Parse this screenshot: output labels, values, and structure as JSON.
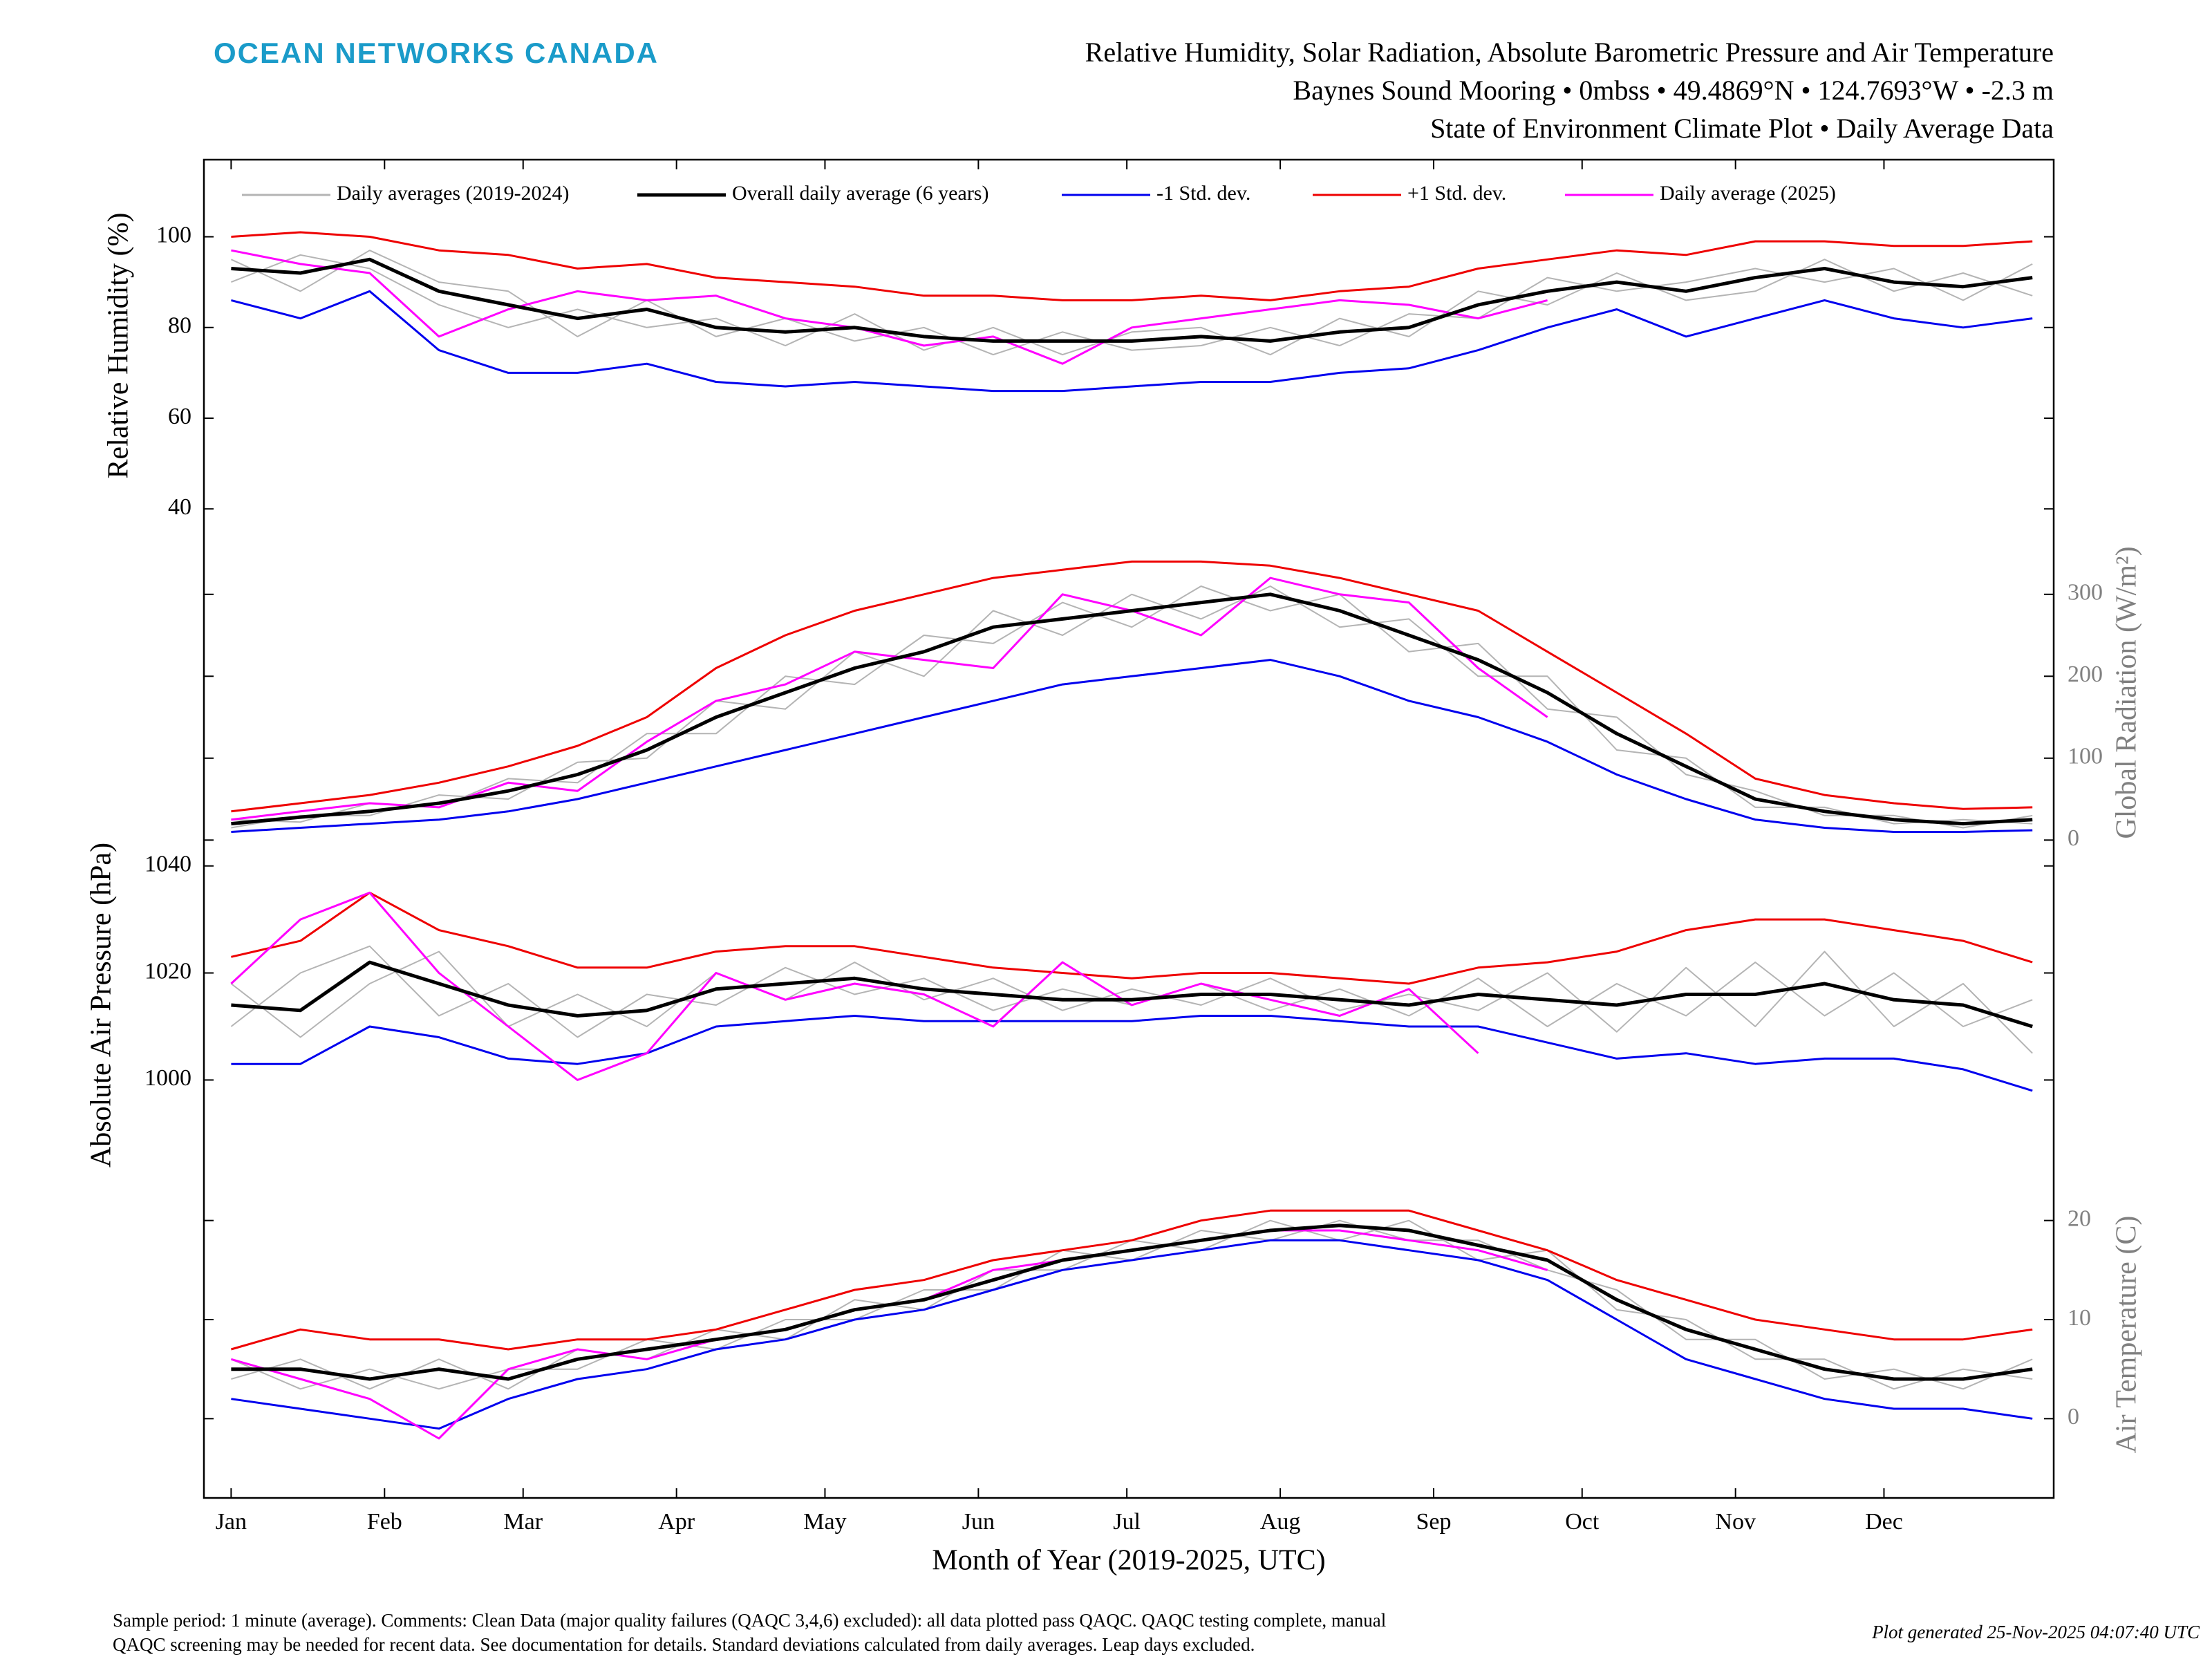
{
  "logo": "OCEAN NETWORKS CANADA",
  "chart_data": {
    "type": "line",
    "title": [
      "Relative Humidity, Solar Radiation, Absolute Barometric Pressure and Air Temperature",
      "Baynes Sound Mooring • 0mbss • 49.4869°N • 124.7693°W • -2.3 m",
      "State of Environment Climate Plot • Daily Average Data"
    ],
    "xlabel": "Month of Year (2019-2025, UTC)",
    "x": [
      1,
      15,
      29,
      43,
      57,
      71,
      85,
      99,
      113,
      127,
      141,
      155,
      169,
      183,
      197,
      211,
      225,
      239,
      253,
      267,
      281,
      295,
      309,
      323,
      337,
      351,
      365
    ],
    "xlim": [
      -4.5,
      369.3
    ],
    "xticks": [
      {
        "value": 1,
        "label": "Jan"
      },
      {
        "value": 32,
        "label": "Feb"
      },
      {
        "value": 60,
        "label": "Mar"
      },
      {
        "value": 91,
        "label": "Apr"
      },
      {
        "value": 121,
        "label": "May"
      },
      {
        "value": 152,
        "label": "Jun"
      },
      {
        "value": 182,
        "label": "Jul"
      },
      {
        "value": 213,
        "label": "Aug"
      },
      {
        "value": 244,
        "label": "Sep"
      },
      {
        "value": 274,
        "label": "Oct"
      },
      {
        "value": 305,
        "label": "Nov"
      },
      {
        "value": 335,
        "label": "Dec"
      }
    ],
    "legend": [
      {
        "name": "Daily averages (2019-2024)",
        "color": "#b4b4b4"
      },
      {
        "name": "Overall daily average (6 years)",
        "color": "#000000"
      },
      {
        "name": "-1 Std. dev.",
        "color": "#0000ee"
      },
      {
        "name": "+1 Std. dev.",
        "color": "#ee0000"
      },
      {
        "name": "Daily average (2025)",
        "color": "#ff00ff"
      }
    ],
    "panels": [
      {
        "ylabel": "Relative Humidity (%)",
        "axis_side": "left",
        "axis_color": "#000000",
        "ylim": [
          35,
          117
        ],
        "yticks": [
          40,
          60,
          80,
          100
        ],
        "series": [
          {
            "color": "#b4b4b4",
            "values": [
              90,
              96,
              93,
              85,
              80,
              84,
              80,
              82,
              76,
              83,
              75,
              80,
              74,
              79,
              80,
              74,
              82,
              78,
              88,
              85,
              92,
              86,
              88,
              95,
              88,
              92,
              87
            ]
          },
          {
            "color": "#b4b4b4",
            "values": [
              95,
              88,
              97,
              90,
              88,
              78,
              86,
              78,
              82,
              77,
              80,
              74,
              79,
              75,
              76,
              80,
              76,
              83,
              82,
              91,
              88,
              90,
              93,
              90,
              93,
              86,
              94
            ]
          },
          {
            "color": "#0000ee",
            "values": [
              86,
              82,
              88,
              75,
              70,
              70,
              72,
              68,
              67,
              68,
              67,
              66,
              66,
              67,
              68,
              68,
              70,
              71,
              75,
              80,
              84,
              78,
              82,
              86,
              82,
              80,
              82
            ]
          },
          {
            "color": "#ee0000",
            "values": [
              100,
              101,
              100,
              97,
              96,
              93,
              94,
              91,
              90,
              89,
              87,
              87,
              86,
              86,
              87,
              86,
              88,
              89,
              93,
              95,
              97,
              96,
              99,
              99,
              98,
              98,
              99
            ]
          },
          {
            "color": "#ff00ff",
            "values": [
              97,
              94,
              92,
              78,
              84,
              88,
              86,
              87,
              82,
              80,
              76,
              78,
              72,
              80,
              82,
              84,
              86,
              85,
              82,
              86,
              null,
              null,
              null,
              null,
              null,
              null,
              null
            ]
          },
          {
            "color": "#000000",
            "values": [
              93,
              92,
              95,
              88,
              85,
              82,
              84,
              80,
              79,
              80,
              78,
              77,
              77,
              77,
              78,
              77,
              79,
              80,
              85,
              88,
              90,
              88,
              91,
              93,
              90,
              89,
              91
            ]
          }
        ]
      },
      {
        "ylabel": "Global Radiation (W/m²)",
        "axis_side": "right",
        "axis_color": "#808080",
        "ylim": [
          -20,
          380
        ],
        "yticks": [
          0,
          100,
          200,
          300
        ],
        "series": [
          {
            "color": "#b4b4b4",
            "values": [
              15,
              30,
              30,
              55,
              50,
              95,
              100,
              170,
              160,
              230,
              200,
              280,
              250,
              300,
              270,
              310,
              260,
              270,
              200,
              200,
              110,
              100,
              40,
              40,
              20,
              25,
              20
            ]
          },
          {
            "color": "#b4b4b4",
            "values": [
              25,
              22,
              45,
              40,
              75,
              70,
              130,
              130,
              200,
              190,
              250,
              240,
              290,
              260,
              310,
              280,
              300,
              230,
              240,
              160,
              150,
              80,
              60,
              30,
              30,
              15,
              30
            ]
          },
          {
            "color": "#0000ee",
            "values": [
              10,
              15,
              20,
              25,
              35,
              50,
              70,
              90,
              110,
              130,
              150,
              170,
              190,
              200,
              210,
              220,
              200,
              170,
              150,
              120,
              80,
              50,
              25,
              15,
              10,
              10,
              12
            ]
          },
          {
            "color": "#ee0000",
            "values": [
              35,
              45,
              55,
              70,
              90,
              115,
              150,
              210,
              250,
              280,
              300,
              320,
              330,
              340,
              340,
              335,
              320,
              300,
              280,
              230,
              180,
              130,
              75,
              55,
              45,
              38,
              40
            ]
          },
          {
            "color": "#ff00ff",
            "values": [
              25,
              35,
              45,
              40,
              70,
              60,
              120,
              170,
              190,
              230,
              220,
              210,
              300,
              280,
              250,
              320,
              300,
              290,
              210,
              150,
              null,
              null,
              null,
              null,
              null,
              null,
              null
            ]
          },
          {
            "color": "#000000",
            "values": [
              20,
              28,
              35,
              45,
              60,
              80,
              110,
              150,
              180,
              210,
              230,
              260,
              270,
              280,
              290,
              300,
              280,
              250,
              220,
              180,
              130,
              90,
              50,
              35,
              25,
              20,
              25
            ]
          }
        ]
      },
      {
        "ylabel": "Absolute Air Pressure (hPa)",
        "axis_side": "left",
        "axis_color": "#000000",
        "ylim": [
          983,
          1045
        ],
        "yticks": [
          1000,
          1020,
          1040
        ],
        "series": [
          {
            "color": "#b4b4b4",
            "values": [
              1010,
              1020,
              1025,
              1012,
              1018,
              1008,
              1016,
              1014,
              1021,
              1016,
              1019,
              1013,
              1017,
              1014,
              1018,
              1013,
              1017,
              1012,
              1019,
              1010,
              1018,
              1012,
              1022,
              1012,
              1020,
              1010,
              1015
            ]
          },
          {
            "color": "#b4b4b4",
            "values": [
              1018,
              1008,
              1018,
              1024,
              1010,
              1016,
              1010,
              1020,
              1015,
              1022,
              1015,
              1019,
              1013,
              1017,
              1014,
              1019,
              1013,
              1016,
              1013,
              1020,
              1009,
              1021,
              1010,
              1024,
              1010,
              1018,
              1005
            ]
          },
          {
            "color": "#0000ee",
            "values": [
              1003,
              1003,
              1010,
              1008,
              1004,
              1003,
              1005,
              1010,
              1011,
              1012,
              1011,
              1011,
              1011,
              1011,
              1012,
              1012,
              1011,
              1010,
              1010,
              1007,
              1004,
              1005,
              1003,
              1004,
              1004,
              1002,
              998
            ]
          },
          {
            "color": "#ee0000",
            "values": [
              1023,
              1026,
              1035,
              1028,
              1025,
              1021,
              1021,
              1024,
              1025,
              1025,
              1023,
              1021,
              1020,
              1019,
              1020,
              1020,
              1019,
              1018,
              1021,
              1022,
              1024,
              1028,
              1030,
              1030,
              1028,
              1026,
              1022
            ]
          },
          {
            "color": "#ff00ff",
            "values": [
              1018,
              1030,
              1035,
              1020,
              1010,
              1000,
              1005,
              1020,
              1015,
              1018,
              1016,
              1010,
              1022,
              1014,
              1018,
              1015,
              1012,
              1017,
              1005,
              null,
              null,
              null,
              null,
              null,
              null,
              null,
              null
            ]
          },
          {
            "color": "#000000",
            "values": [
              1014,
              1013,
              1022,
              1018,
              1014,
              1012,
              1013,
              1017,
              1018,
              1019,
              1017,
              1016,
              1015,
              1015,
              1016,
              1016,
              1015,
              1014,
              1016,
              1015,
              1014,
              1016,
              1016,
              1018,
              1015,
              1014,
              1010
            ]
          }
        ]
      },
      {
        "ylabel": "Air Temperature (C)",
        "axis_side": "right",
        "axis_color": "#808080",
        "ylim": [
          -8,
          25
        ],
        "yticks": [
          0,
          10,
          20
        ],
        "series": [
          {
            "color": "#b4b4b4",
            "values": [
              4,
              6,
              3,
              6,
              3,
              7,
              6,
              9,
              8,
              12,
              11,
              15,
              15,
              18,
              17,
              20,
              18,
              20,
              16,
              17,
              11,
              10,
              6,
              6,
              3,
              5,
              4
            ]
          },
          {
            "color": "#b4b4b4",
            "values": [
              6,
              3,
              5,
              3,
              5,
              5,
              8,
              7,
              10,
              10,
              13,
              13,
              17,
              16,
              19,
              18,
              20,
              18,
              18,
              15,
              13,
              8,
              8,
              4,
              5,
              3,
              6
            ]
          },
          {
            "color": "#0000ee",
            "values": [
              2,
              1,
              0,
              -1,
              2,
              4,
              5,
              7,
              8,
              10,
              11,
              13,
              15,
              16,
              17,
              18,
              18,
              17,
              16,
              14,
              10,
              6,
              4,
              2,
              1,
              1,
              0
            ]
          },
          {
            "color": "#ee0000",
            "values": [
              7,
              9,
              8,
              8,
              7,
              8,
              8,
              9,
              11,
              13,
              14,
              16,
              17,
              18,
              20,
              21,
              21,
              21,
              19,
              17,
              14,
              12,
              10,
              9,
              8,
              8,
              9
            ]
          },
          {
            "color": "#ff00ff",
            "values": [
              6,
              4,
              2,
              -2,
              5,
              7,
              6,
              8,
              9,
              11,
              12,
              15,
              16,
              17,
              18,
              19,
              19,
              18,
              17,
              15,
              null,
              null,
              null,
              null,
              null,
              null,
              null
            ]
          },
          {
            "color": "#000000",
            "values": [
              5,
              5,
              4,
              5,
              4,
              6,
              7,
              8,
              9,
              11,
              12,
              14,
              16,
              17,
              18,
              19,
              19.5,
              19,
              17.5,
              16,
              12,
              9,
              7,
              5,
              4,
              4,
              5
            ]
          }
        ]
      }
    ]
  },
  "footer": {
    "note": [
      "Sample period: 1 minute (average). Comments: Clean Data (major quality failures (QAQC 3,4,6) excluded): all data plotted pass QAQC. QAQC testing complete, manual",
      "QAQC screening may be needed for recent data. See documentation for details. Standard deviations calculated from daily averages. Leap days excluded."
    ],
    "generated": "Plot generated 25-Nov-2025 04:07:40 UTC"
  }
}
